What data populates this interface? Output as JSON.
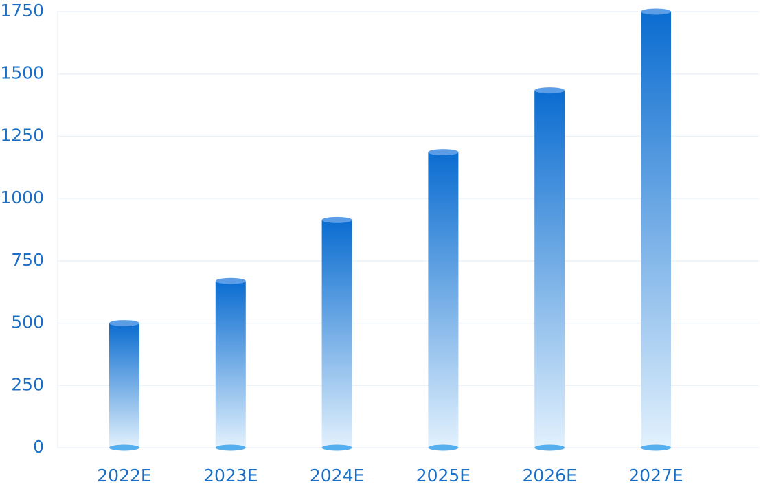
{
  "chart_data": {
    "type": "bar",
    "categories": [
      "2022E",
      "2023E",
      "2024E",
      "2025E",
      "2026E",
      "2027E"
    ],
    "values": [
      500,
      669,
      914,
      1186,
      1434,
      1750
    ],
    "color": "#0a6cd0",
    "ylim": [
      0,
      1750
    ],
    "yticks": [
      0,
      250,
      500,
      750,
      1000,
      1250,
      1500,
      1750
    ],
    "grid": true
  }
}
